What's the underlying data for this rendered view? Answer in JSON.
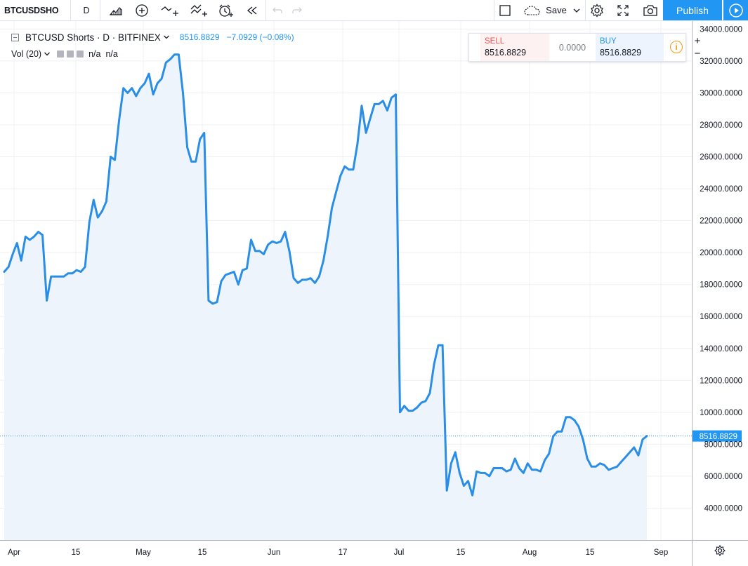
{
  "toolbar": {
    "symbol": "BTCUSDSHO",
    "interval": "D",
    "save_label": "Save",
    "publish_label": "Publish"
  },
  "legend": {
    "series_title": "BTCUSD Shorts · D · BITFINEX",
    "last_price": "8516.8829",
    "change": "−7.0929 (−0.08%)",
    "volume_title": "Vol (20)",
    "volume_value_1": "n/a",
    "volume_value_2": "n/a"
  },
  "trade_panel": {
    "sell_label": "SELL",
    "sell_price": "8516.8829",
    "spread": "0.0000",
    "buy_label": "BUY",
    "buy_price": "8516.8829"
  },
  "colors": {
    "line": "#2a8ee6",
    "area": "#eef4fc",
    "sell": "#ef5350",
    "buy": "#2196f3",
    "publish": "#2196f3",
    "grid": "#eef0f3"
  },
  "chart_data": {
    "type": "area",
    "title": "BTCUSD Shorts · D · BITFINEX",
    "ylim": [
      2000,
      34500
    ],
    "y_ticks": [
      "4000.0000",
      "6000.0000",
      "8000.0000",
      "10000.0000",
      "12000.0000",
      "14000.0000",
      "16000.0000",
      "18000.0000",
      "20000.0000",
      "22000.0000",
      "24000.0000",
      "26000.0000",
      "28000.0000",
      "30000.0000",
      "32000.0000",
      "34000.0000"
    ],
    "x_ticks": [
      "Apr",
      "15",
      "May",
      "15",
      "Jun",
      "17",
      "Jul",
      "15",
      "Aug",
      "15",
      "Sep"
    ],
    "last_value_label": "8516.8829",
    "series": [
      {
        "values": [
          18800,
          19100,
          19900,
          20600,
          19500,
          21000,
          20800,
          21000,
          21300,
          21100,
          17000,
          18500,
          18500,
          18500,
          18500,
          18700,
          18700,
          18900,
          18800,
          19100,
          21900,
          23300,
          22200,
          22600,
          23200,
          26000,
          25800,
          28300,
          30300,
          30000,
          30300,
          29800,
          30300,
          30600,
          31200,
          29900,
          30600,
          30900,
          31900,
          32100,
          32400,
          32400,
          30000,
          26600,
          25700,
          25700,
          27100,
          27500,
          17000,
          16800,
          16900,
          18200,
          18600,
          18700,
          18800,
          18000,
          18900,
          19000,
          20800,
          20100,
          20100,
          19900,
          20500,
          20700,
          20600,
          20700,
          21300,
          20100,
          18400,
          18100,
          18300,
          18300,
          18400,
          18100,
          18500,
          19500,
          21000,
          22800,
          23800,
          24800,
          25400,
          25200,
          25200,
          26800,
          29200,
          27500,
          28400,
          29300,
          29300,
          29500,
          28900,
          29700,
          29900,
          10000,
          10400,
          10100,
          10100,
          10300,
          10600,
          10700,
          11200,
          13000,
          14200,
          14200,
          5100,
          6800,
          7500,
          6200,
          5400,
          5700,
          4800,
          6300,
          6200,
          6200,
          6000,
          6500,
          6500,
          6500,
          6300,
          6400,
          7100,
          6500,
          6200,
          6800,
          6400,
          6400,
          6300,
          7000,
          7400,
          8500,
          8800,
          8800,
          9700,
          9700,
          9500,
          9100,
          8300,
          7100,
          6600,
          6600,
          6800,
          6700,
          6400,
          6500,
          6600,
          6900,
          7200,
          7500,
          7800,
          7300,
          8300,
          8517
        ]
      }
    ]
  }
}
